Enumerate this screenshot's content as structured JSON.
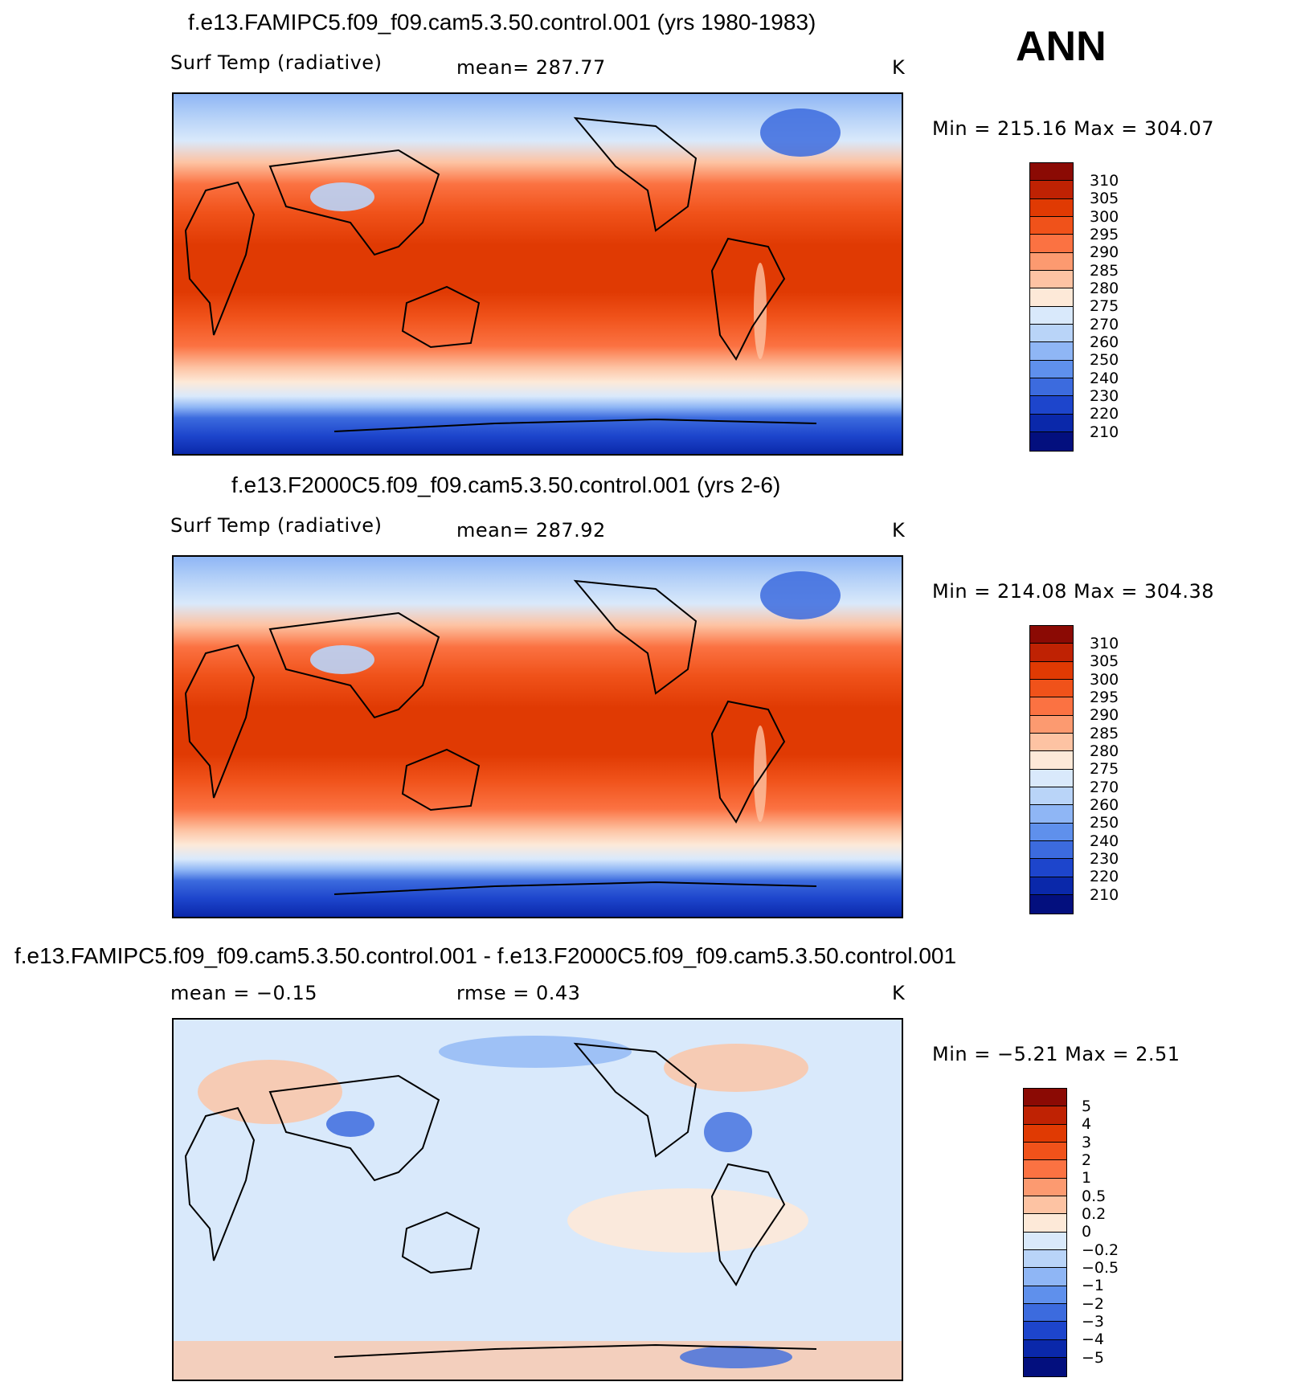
{
  "season": "ANN",
  "panels": [
    {
      "title": "f.e13.FAMIPC5.f09_f09.cam5.3.50.control.001 (yrs 1980-1983)",
      "left_label": "Surf Temp (radiative)",
      "center_label": "mean=  287.77",
      "units": "K",
      "minmax": "Min  =  215.16  Max  =  304.07"
    },
    {
      "title": "f.e13.F2000C5.f09_f09.cam5.3.50.control.001 (yrs 2-6)",
      "left_label": "Surf Temp (radiative)",
      "center_label": "mean=  287.92",
      "units": "K",
      "minmax": "Min  =  214.08  Max  =  304.38"
    },
    {
      "title": "f.e13.FAMIPC5.f09_f09.cam5.3.50.control.001 - f.e13.F2000C5.f09_f09.cam5.3.50.control.001",
      "left_label": "mean  =     −0.15",
      "center_label": "rmse  =     0.43",
      "units": "K",
      "minmax": "Min  =     −5.21  Max  =     2.51"
    }
  ],
  "colorbars": {
    "absolute": {
      "labels": [
        "310",
        "305",
        "300",
        "295",
        "290",
        "285",
        "280",
        "275",
        "270",
        "260",
        "250",
        "240",
        "230",
        "220",
        "210"
      ],
      "colors": [
        "#8b0a04",
        "#bf2203",
        "#e03a03",
        "#f0521a",
        "#fb7242",
        "#fc9a70",
        "#fdc3a3",
        "#fde9d8",
        "#d9e9fb",
        "#b9d4f8",
        "#8fb6f5",
        "#5f90ec",
        "#3c6bde",
        "#1d45cc",
        "#0a28aa",
        "#030f7e"
      ]
    },
    "difference": {
      "labels": [
        "5",
        "4",
        "3",
        "2",
        "1",
        "0.5",
        "0.2",
        "0",
        "−0.2",
        "−0.5",
        "−1",
        "−2",
        "−3",
        "−4",
        "−5"
      ],
      "colors": [
        "#8b0a04",
        "#bf2203",
        "#e03a03",
        "#f0521a",
        "#fb7242",
        "#fc9a70",
        "#fdc3a3",
        "#fde9d8",
        "#d9e9fb",
        "#b9d4f8",
        "#8fb6f5",
        "#5f90ec",
        "#3c6bde",
        "#1d45cc",
        "#0a28aa",
        "#030f7e"
      ]
    }
  },
  "chart_data": [
    {
      "type": "heatmap",
      "title": "f.e13.FAMIPC5.f09_f09.cam5.3.50.control.001 (yrs 1980-1983)",
      "variable": "Surf Temp (radiative)",
      "units": "K",
      "mean": 287.77,
      "min": 215.16,
      "max": 304.07,
      "levels": [
        210,
        220,
        230,
        240,
        250,
        260,
        270,
        275,
        280,
        285,
        290,
        295,
        300,
        305,
        310
      ],
      "lat_profile": [
        [
          90,
          250
        ],
        [
          75,
          262
        ],
        [
          60,
          272
        ],
        [
          45,
          282
        ],
        [
          30,
          293
        ],
        [
          15,
          299
        ],
        [
          0,
          301
        ],
        [
          -15,
          299
        ],
        [
          -30,
          293
        ],
        [
          -45,
          282
        ],
        [
          -55,
          274
        ],
        [
          -60,
          268
        ],
        [
          -66,
          255
        ],
        [
          -75,
          232
        ],
        [
          -90,
          224
        ]
      ]
    },
    {
      "type": "heatmap",
      "title": "f.e13.F2000C5.f09_f09.cam5.3.50.control.001 (yrs 2-6)",
      "variable": "Surf Temp (radiative)",
      "units": "K",
      "mean": 287.92,
      "min": 214.08,
      "max": 304.38,
      "levels": [
        210,
        220,
        230,
        240,
        250,
        260,
        270,
        275,
        280,
        285,
        290,
        295,
        300,
        305,
        310
      ],
      "lat_profile": [
        [
          90,
          250
        ],
        [
          75,
          262
        ],
        [
          60,
          272
        ],
        [
          45,
          282
        ],
        [
          30,
          293
        ],
        [
          15,
          299
        ],
        [
          0,
          301
        ],
        [
          -15,
          299
        ],
        [
          -30,
          293
        ],
        [
          -45,
          282
        ],
        [
          -55,
          274
        ],
        [
          -60,
          268
        ],
        [
          -66,
          255
        ],
        [
          -75,
          232
        ],
        [
          -90,
          224
        ]
      ]
    },
    {
      "type": "heatmap",
      "title": "f.e13.FAMIPC5.f09_f09.cam5.3.50.control.001 - f.e13.F2000C5.f09_f09.cam5.3.50.control.001",
      "units": "K",
      "mean": -0.15,
      "rmse": 0.43,
      "min": -5.21,
      "max": 2.51,
      "levels": [
        -5,
        -4,
        -3,
        -2,
        -1,
        -0.5,
        -0.2,
        0,
        0.2,
        0.5,
        1,
        2,
        3,
        4,
        5
      ]
    }
  ]
}
